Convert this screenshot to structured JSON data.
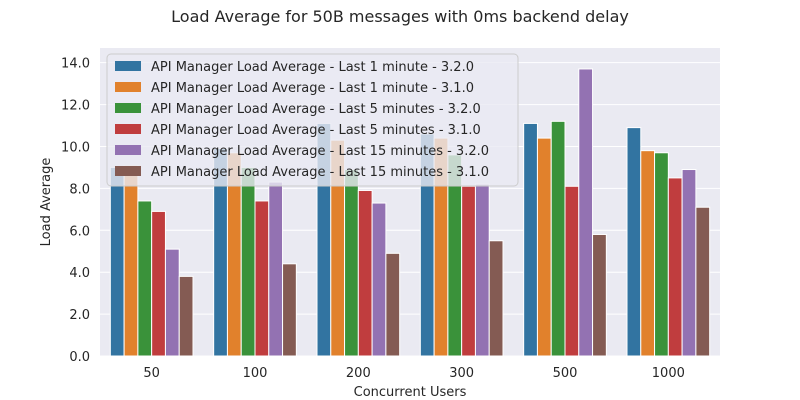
{
  "chart_data": {
    "type": "bar",
    "title": "Load Average for 50B messages with 0ms backend delay",
    "xlabel": "Concurrent Users",
    "ylabel": "Load Average",
    "categories": [
      "50",
      "100",
      "200",
      "300",
      "500",
      "1000"
    ],
    "ylim": [
      0,
      14.7
    ],
    "yticks": [
      "0.0",
      "2.0",
      "4.0",
      "6.0",
      "8.0",
      "10.0",
      "12.0",
      "14.0"
    ],
    "grid": true,
    "legend_position": "top-left",
    "series": [
      {
        "name": "API Manager Load Average - Last 1 minute - 3.2.0",
        "color": "#3274a1",
        "values": [
          9.0,
          9.9,
          11.1,
          10.6,
          11.1,
          10.9
        ]
      },
      {
        "name": "API Manager Load Average - Last 1 minute - 3.1.0",
        "color": "#e1812c",
        "values": [
          9.1,
          9.7,
          10.3,
          10.4,
          10.4,
          9.8
        ]
      },
      {
        "name": "API Manager Load Average - Last 5 minutes - 3.2.0",
        "color": "#3a923a",
        "values": [
          7.4,
          9.0,
          8.9,
          9.6,
          11.2,
          9.7
        ]
      },
      {
        "name": "API Manager Load Average - Last 5 minutes - 3.1.0",
        "color": "#c03d3e",
        "values": [
          6.9,
          7.4,
          7.9,
          8.1,
          8.1,
          8.5
        ]
      },
      {
        "name": "API Manager Load Average - Last 15 minutes - 3.2.0",
        "color": "#9372b2",
        "values": [
          5.1,
          8.3,
          7.3,
          8.2,
          13.7,
          8.9
        ]
      },
      {
        "name": "API Manager Load Average - Last 15 minutes - 3.1.0",
        "color": "#845b53",
        "values": [
          3.8,
          4.4,
          4.9,
          5.5,
          5.8,
          7.1
        ]
      }
    ]
  }
}
